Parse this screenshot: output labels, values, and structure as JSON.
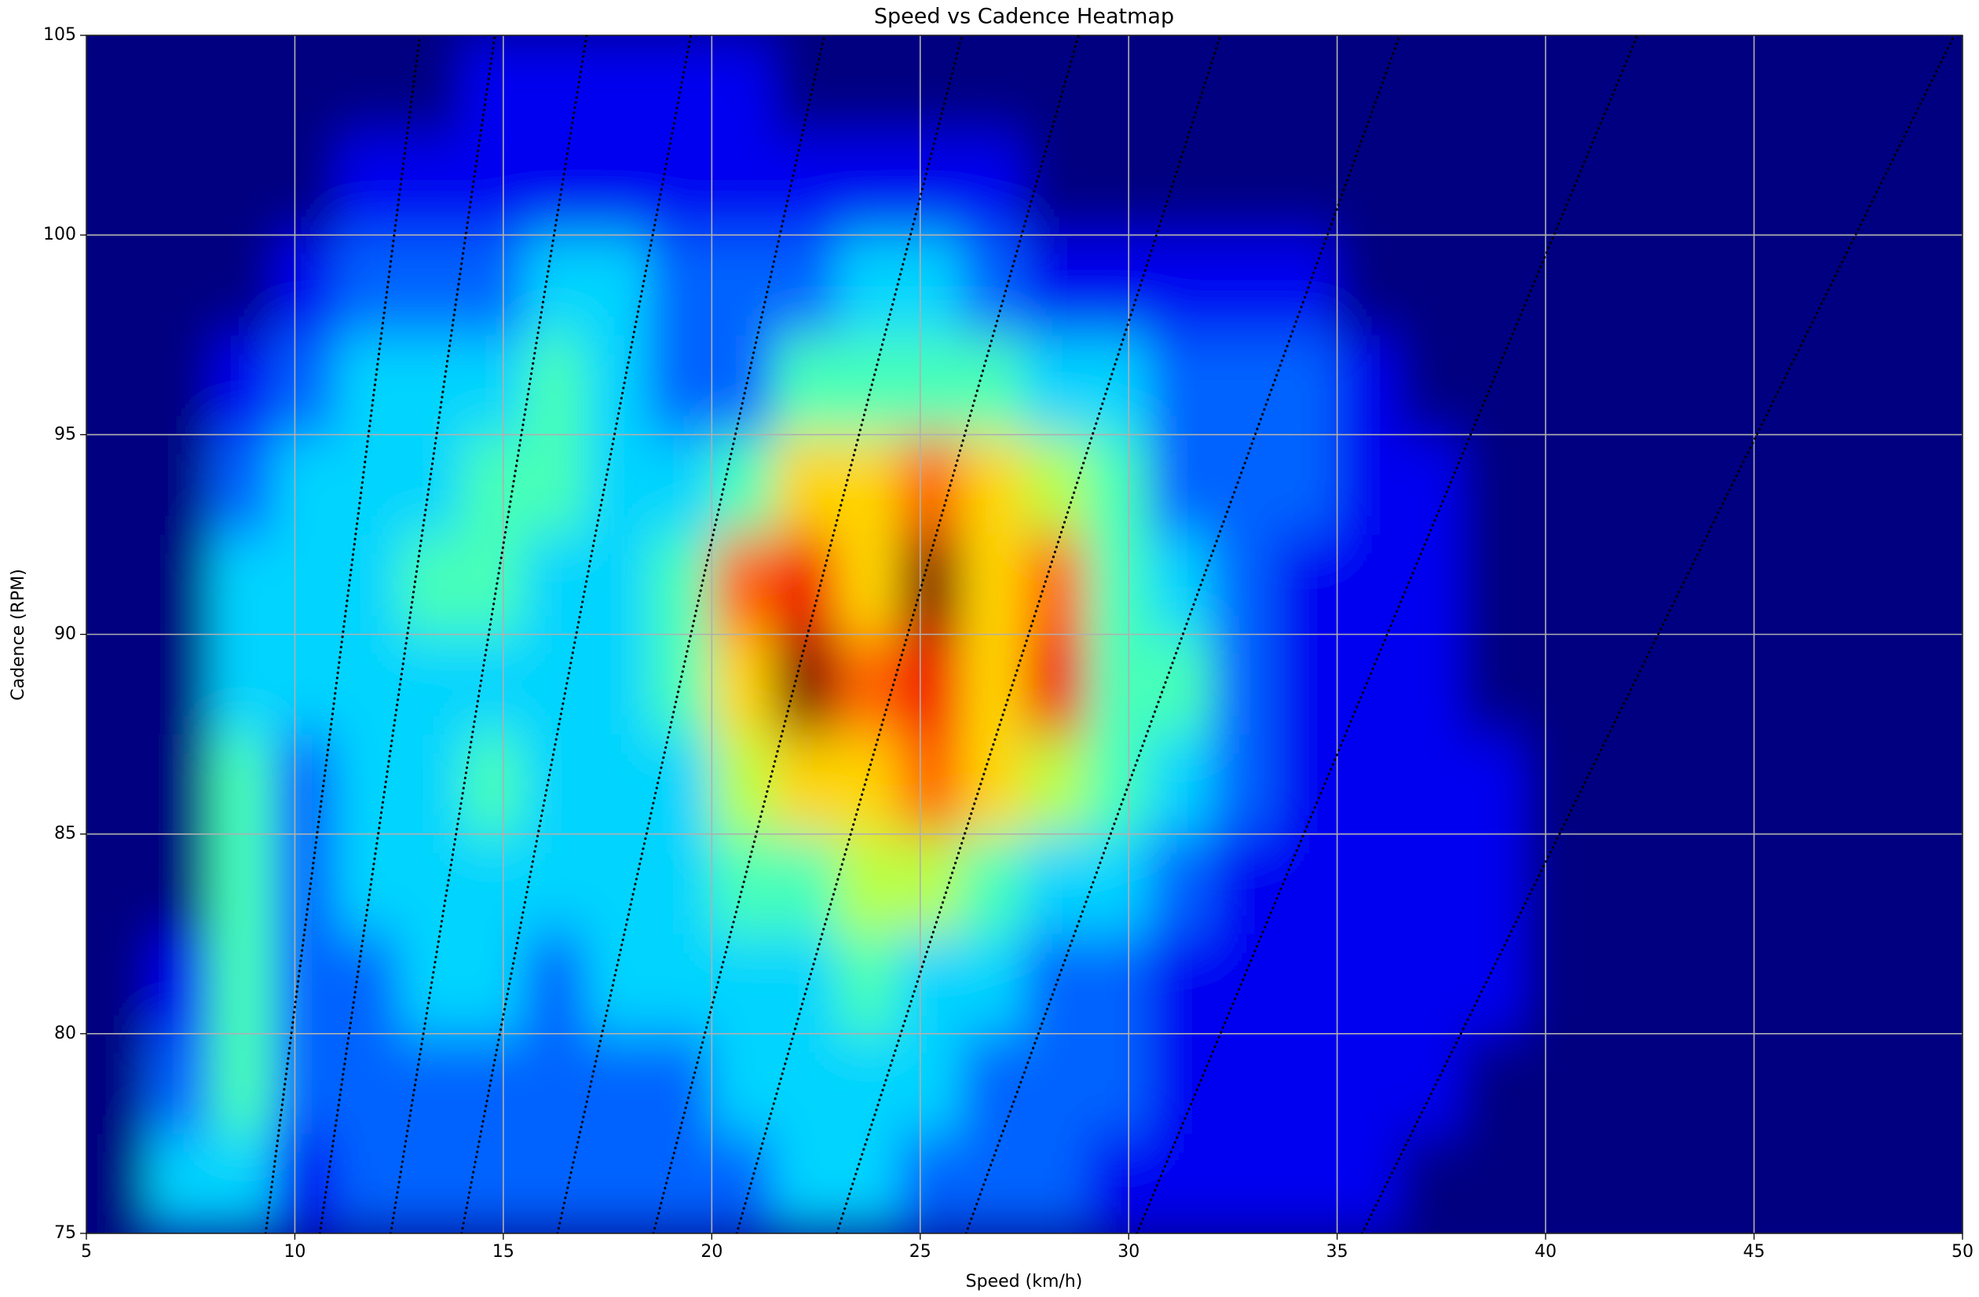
{
  "chart_data": {
    "type": "heatmap",
    "title": "Speed vs Cadence Heatmap",
    "x_label": "Speed (km/h)",
    "y_label": "Cadence (RPM)",
    "colormap": "jet",
    "zlim": [
      0,
      9
    ],
    "x_bins": [
      5,
      6.5,
      8,
      9.5,
      11,
      12.5,
      14,
      15.5,
      17,
      18.5,
      20,
      21.5,
      23,
      24.5,
      26,
      27.5,
      29,
      30.5,
      32,
      33.5,
      35,
      36.5,
      38,
      39.5,
      41,
      42.5,
      44,
      45.5,
      47,
      48.5,
      50
    ],
    "y_bins": [
      75,
      77.5,
      80,
      82.5,
      85,
      87.5,
      90,
      92.5,
      95,
      97.5,
      100,
      102.5,
      105
    ],
    "z": [
      [
        0,
        3,
        3,
        1,
        2,
        2,
        2,
        2,
        2,
        2,
        2,
        3,
        3,
        2,
        2,
        2,
        1,
        1,
        1,
        1,
        1,
        0,
        0,
        0,
        0,
        0,
        0,
        0,
        0,
        0
      ],
      [
        0,
        2,
        4,
        2,
        2,
        2,
        2,
        2,
        2,
        2,
        3,
        3,
        3,
        3,
        2,
        2,
        2,
        1,
        1,
        1,
        1,
        1,
        0,
        0,
        0,
        0,
        0,
        0,
        0,
        0
      ],
      [
        0,
        1,
        4,
        2,
        2,
        3,
        3,
        2,
        3,
        3,
        3,
        3,
        4,
        3,
        3,
        2,
        2,
        1,
        1,
        1,
        1,
        1,
        1,
        0,
        0,
        0,
        0,
        0,
        0,
        0
      ],
      [
        0,
        0,
        4,
        2,
        3,
        3,
        3,
        3,
        3,
        3,
        4,
        4,
        5,
        5,
        4,
        3,
        3,
        2,
        1,
        1,
        1,
        1,
        1,
        0,
        0,
        0,
        0,
        0,
        0,
        0
      ],
      [
        0,
        0,
        4,
        2,
        3,
        3,
        4,
        3,
        3,
        3,
        5,
        6,
        6,
        7,
        6,
        5,
        4,
        3,
        2,
        1,
        1,
        1,
        1,
        0,
        0,
        0,
        0,
        0,
        0,
        0
      ],
      [
        0,
        0,
        3,
        3,
        3,
        3,
        3,
        3,
        3,
        4,
        6,
        9,
        7,
        8,
        6,
        8,
        4,
        4,
        2,
        1,
        1,
        1,
        0,
        0,
        0,
        0,
        0,
        0,
        0,
        0
      ],
      [
        0,
        0,
        3,
        3,
        3,
        4,
        4,
        3,
        3,
        4,
        7,
        8,
        6,
        9,
        6,
        7,
        4,
        3,
        2,
        1,
        1,
        1,
        0,
        0,
        0,
        0,
        0,
        0,
        0,
        0
      ],
      [
        0,
        0,
        2,
        3,
        3,
        3,
        4,
        4,
        3,
        3,
        4,
        6,
        6,
        7,
        6,
        5,
        4,
        2,
        2,
        2,
        1,
        1,
        0,
        0,
        0,
        0,
        0,
        0,
        0,
        0
      ],
      [
        0,
        0,
        1,
        2,
        3,
        3,
        3,
        4,
        3,
        2,
        2,
        4,
        4,
        4,
        4,
        3,
        3,
        2,
        2,
        2,
        1,
        0,
        0,
        0,
        0,
        0,
        0,
        0,
        0,
        0
      ],
      [
        0,
        0,
        0,
        1,
        2,
        2,
        2,
        3,
        3,
        2,
        2,
        2,
        3,
        3,
        2,
        1,
        1,
        1,
        1,
        1,
        0,
        0,
        0,
        0,
        0,
        0,
        0,
        0,
        0,
        0
      ],
      [
        0,
        0,
        0,
        0,
        1,
        1,
        1,
        1,
        1,
        1,
        1,
        1,
        1,
        1,
        1,
        0,
        0,
        0,
        0,
        0,
        0,
        0,
        0,
        0,
        0,
        0,
        0,
        0,
        0,
        0
      ],
      [
        0,
        0,
        0,
        0,
        0,
        0,
        1,
        1,
        1,
        1,
        1,
        0,
        0,
        0,
        0,
        0,
        0,
        0,
        0,
        0,
        0,
        0,
        0,
        0,
        0,
        0,
        0,
        0,
        0,
        0
      ]
    ],
    "gear_lines": [
      {
        "x": [
          9.3,
          13.0
        ],
        "y": [
          75,
          105
        ]
      },
      {
        "x": [
          10.6,
          14.8
        ],
        "y": [
          75,
          105
        ]
      },
      {
        "x": [
          12.3,
          17.0
        ],
        "y": [
          75,
          105
        ]
      },
      {
        "x": [
          14.0,
          19.5
        ],
        "y": [
          75,
          105
        ]
      },
      {
        "x": [
          16.3,
          22.7
        ],
        "y": [
          75,
          105
        ]
      },
      {
        "x": [
          18.6,
          26.0
        ],
        "y": [
          75,
          105
        ]
      },
      {
        "x": [
          20.6,
          28.8
        ],
        "y": [
          75,
          105
        ]
      },
      {
        "x": [
          23.0,
          32.2
        ],
        "y": [
          75,
          105
        ]
      },
      {
        "x": [
          26.1,
          36.5
        ],
        "y": [
          75,
          105
        ]
      },
      {
        "x": [
          30.2,
          42.2
        ],
        "y": [
          75,
          105
        ]
      },
      {
        "x": [
          35.6,
          49.8
        ],
        "y": [
          75,
          105
        ]
      }
    ],
    "gear_line_color": "#000000",
    "xlim": [
      5,
      50
    ],
    "ylim": [
      75,
      105
    ],
    "xticks": [
      5,
      10,
      15,
      20,
      25,
      30,
      35,
      40,
      45,
      50
    ],
    "yticks": [
      75,
      80,
      85,
      90,
      95,
      100,
      105
    ],
    "grid": true
  }
}
